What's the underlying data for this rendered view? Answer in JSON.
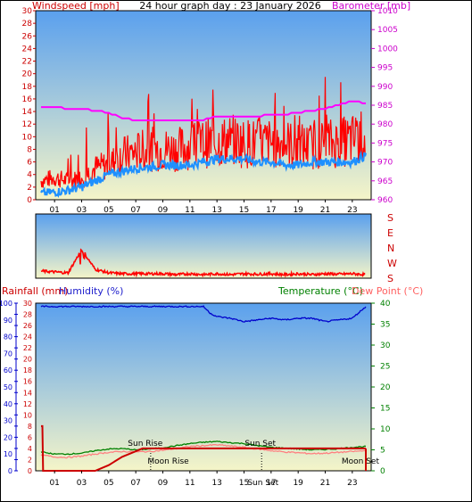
{
  "header": {
    "title": "24 hour graph day : 23 January 2026",
    "left_label": "Windspeed [mph]",
    "right_label": "Barometer [mb]"
  },
  "colors": {
    "wind": "#ff0000",
    "gust_avg": "#1e90ff",
    "barometer": "#ff00ff",
    "humidity": "#0000cc",
    "rainfall": "#cc0000",
    "temperature": "#008000",
    "dewpoint": "#ff8080",
    "bg_top": "#5aa0ee",
    "bg_bottom": "#f5f5c8"
  },
  "chart_data": [
    {
      "type": "line",
      "x_ticks": [
        "01",
        "03",
        "05",
        "07",
        "09",
        "11",
        "13",
        "15",
        "17",
        "19",
        "21",
        "23"
      ],
      "left_axis": {
        "label": "Windspeed [mph]",
        "ylim": [
          0,
          30
        ],
        "ticks": [
          0,
          2,
          4,
          6,
          8,
          10,
          12,
          14,
          16,
          18,
          20,
          22,
          24,
          26,
          28,
          30
        ]
      },
      "right_axis": {
        "label": "Barometer [mb]",
        "ylim": [
          960,
          1010
        ],
        "ticks": [
          960,
          965,
          970,
          975,
          980,
          985,
          990,
          995,
          1000,
          1005,
          1010
        ]
      },
      "series": [
        {
          "name": "Windspeed [mph]",
          "axis": "left",
          "x": [
            0,
            1,
            2,
            3,
            4,
            5,
            6,
            7,
            8,
            9,
            10,
            11,
            12,
            13,
            14,
            15,
            16,
            17,
            18,
            19,
            20,
            21,
            22,
            23,
            24
          ],
          "y": [
            3,
            3.5,
            3,
            3.5,
            5,
            5.5,
            7,
            7.5,
            8,
            8,
            8,
            8.5,
            9,
            9,
            9.5,
            9,
            9,
            9,
            9,
            8.5,
            8.5,
            9,
            9,
            9.5,
            10
          ],
          "peaks": [
            6,
            7,
            9,
            12,
            14,
            14,
            22,
            16,
            20,
            17,
            16,
            18,
            17,
            20,
            16,
            22,
            18,
            17,
            22,
            16,
            14,
            20,
            22,
            18,
            16
          ]
        },
        {
          "name": "Average speed",
          "x": [
            0,
            1,
            2,
            3,
            4,
            5,
            6,
            7,
            8,
            9,
            10,
            11,
            12,
            13,
            14,
            15,
            16,
            17,
            18,
            19,
            20,
            21,
            22,
            23,
            24
          ],
          "y": [
            1,
            1.2,
            1.5,
            2,
            3,
            4,
            4.5,
            5,
            5.2,
            5.5,
            5.5,
            5.5,
            6,
            6.5,
            6.5,
            6.5,
            6,
            6,
            5.5,
            5.5,
            6,
            6,
            6,
            6,
            7
          ]
        },
        {
          "name": "Barometer [mb]",
          "axis": "right",
          "x": [
            0,
            1,
            2,
            3,
            4,
            5,
            6,
            7,
            8,
            9,
            10,
            11,
            12,
            13,
            14,
            15,
            16,
            17,
            18,
            19,
            20,
            21,
            22,
            23,
            24
          ],
          "y": [
            984.5,
            984.5,
            984,
            984,
            983.5,
            983,
            981.5,
            981,
            981,
            981,
            981,
            981,
            981,
            982,
            982,
            982,
            982,
            982.5,
            982.5,
            983,
            983.5,
            984,
            985,
            986,
            985.5
          ]
        }
      ]
    },
    {
      "type": "line",
      "y_labels": [
        "S",
        "E",
        "N",
        "W",
        "S"
      ],
      "series": [
        {
          "name": "Wind direction",
          "x": [
            0,
            1,
            2,
            3,
            4,
            5,
            6,
            7,
            8,
            9,
            10,
            11,
            12,
            13,
            14,
            15,
            16,
            17,
            18,
            19,
            20,
            21,
            22,
            23,
            24
          ],
          "y": [
            360,
            350,
            340,
            600,
            380,
            340,
            330,
            330,
            330,
            330,
            320,
            330,
            320,
            330,
            320,
            330,
            325,
            330,
            320,
            330,
            320,
            330,
            325,
            330,
            320
          ]
        }
      ]
    },
    {
      "type": "line",
      "x_ticks": [
        "01",
        "03",
        "05",
        "07",
        "09",
        "11",
        "13",
        "15",
        "17",
        "19",
        "21",
        "23"
      ],
      "left_labels": {
        "rainfall": "Rainfall (mm)",
        "humidity": "Humidity (%)"
      },
      "right_labels": {
        "temperature": "Temperature (°C)",
        "dewpoint": "Dew Point (°C)"
      },
      "humidity_axis": {
        "ylim": [
          0,
          100
        ],
        "ticks": [
          0,
          10,
          20,
          30,
          40,
          50,
          60,
          70,
          80,
          90,
          100
        ]
      },
      "rain_axis": {
        "ylim": [
          0,
          30
        ],
        "ticks": [
          0,
          2,
          4,
          6,
          8,
          10,
          12,
          14,
          16,
          18,
          20,
          22,
          24,
          26,
          28,
          30
        ]
      },
      "temp_axis": {
        "ylim": [
          0,
          40
        ],
        "ticks": [
          0,
          5,
          10,
          15,
          20,
          25,
          30,
          35,
          40
        ]
      },
      "annotations": [
        "Sun Rise",
        "Moon Rise",
        "Sun Set",
        "Moon Set",
        "Sun Set"
      ],
      "series": [
        {
          "name": "Humidity (%)",
          "x": [
            0,
            2,
            4,
            6,
            8,
            10,
            12,
            12.5,
            13,
            14,
            15,
            16,
            17,
            18,
            19,
            20,
            21,
            22,
            23,
            24
          ],
          "y": [
            98,
            98,
            98,
            98,
            98,
            98,
            98,
            94,
            92,
            91,
            89,
            90,
            91,
            90,
            91,
            91,
            89,
            90,
            91,
            98
          ]
        },
        {
          "name": "Temperature (°C)",
          "x": [
            0,
            1,
            2,
            3,
            4,
            5,
            6,
            7,
            8,
            9,
            10,
            11,
            12,
            13,
            14,
            15,
            16,
            17,
            18,
            19,
            20,
            21,
            22,
            23,
            24
          ],
          "y": [
            4.5,
            4,
            4,
            4.2,
            4.8,
            5.2,
            5.3,
            5,
            5.2,
            5.5,
            6,
            6.5,
            6.8,
            7,
            6.7,
            6.5,
            6,
            5.6,
            5.4,
            5.2,
            5,
            5.1,
            5.3,
            5.6,
            5.8
          ]
        },
        {
          "name": "Dew Point (°C)",
          "x": [
            0,
            1,
            2,
            3,
            4,
            5,
            6,
            7,
            8,
            9,
            10,
            11,
            12,
            13,
            14,
            15,
            16,
            17,
            18,
            19,
            20,
            21,
            22,
            23,
            24
          ],
          "y": [
            3.8,
            3.3,
            3.2,
            3.5,
            4,
            4.4,
            4.6,
            4.5,
            4.6,
            4.9,
            5.3,
            5.8,
            6,
            6.2,
            5.9,
            5.6,
            5.2,
            4.8,
            4.5,
            4.3,
            4.1,
            4.2,
            4.4,
            4.6,
            4.8
          ]
        },
        {
          "name": "Rainfall (mm)",
          "x": [
            0,
            0.1,
            0.15,
            4,
            5,
            6,
            7,
            7.5,
            24
          ],
          "y": [
            8,
            8,
            0,
            0,
            1,
            2.5,
            3.5,
            4,
            4
          ]
        }
      ]
    }
  ]
}
